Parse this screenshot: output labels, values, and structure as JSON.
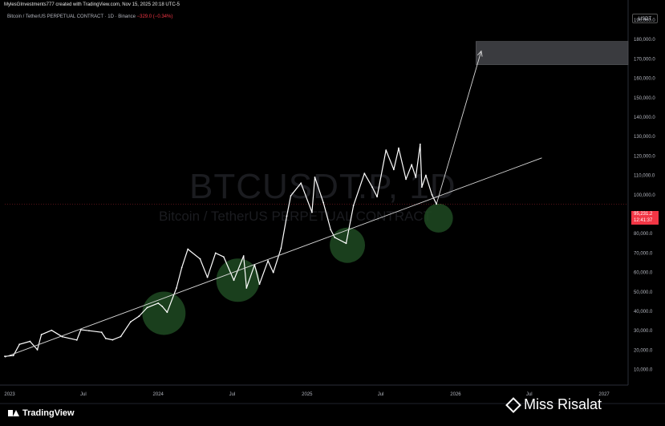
{
  "header": {
    "credit": "MylesGInvestments777 created with TradingView.com, Nov 15, 2025 20:18 UTC-5",
    "symbol_line": "Bitcoin / TetherUS PERPETUAL CONTRACT · 1D · Binance",
    "change": "−329.0 (−0.34%)"
  },
  "watermark": {
    "ticker": "BTCUSDT.P, 1D",
    "name": "Bitcoin / TetherUS PERPETUAL CONTRACT"
  },
  "currency_button": "USDT",
  "current_price_label": {
    "price": "95,231.2",
    "countdown": "12:41:37",
    "color": "#f23645"
  },
  "branding": {
    "tv_logo_text": "TradingView",
    "overlay_text": "Miss Risalat",
    "overlay_icon": "binance-diamond-icon"
  },
  "chart_data": {
    "type": "line",
    "title": "",
    "xlabel": "",
    "ylabel": "",
    "y_axis_ticks": [
      "190,000.0",
      "180,000.0",
      "170,000.0",
      "160,000.0",
      "150,000.0",
      "140,000.0",
      "130,000.0",
      "120,000.0",
      "110,000.0",
      "100,000.0",
      "90,000.0",
      "80,000.0",
      "70,000.0",
      "60,000.0",
      "50,000.0",
      "40,000.0",
      "30,000.0",
      "20,000.0",
      "10,000.0"
    ],
    "y_axis_values": [
      190000,
      180000,
      170000,
      160000,
      150000,
      140000,
      130000,
      120000,
      110000,
      100000,
      90000,
      80000,
      70000,
      60000,
      50000,
      40000,
      30000,
      20000,
      10000
    ],
    "x_axis_labels": [
      "2023",
      "Jul",
      "2024",
      "Jul",
      "2025",
      "Jul",
      "2026",
      "Jul",
      "2027"
    ],
    "x_axis_dates": [
      "2023-01-01",
      "2023-07-01",
      "2024-01-01",
      "2024-07-01",
      "2025-01-01",
      "2025-07-01",
      "2026-01-01",
      "2026-07-01",
      "2027-01-01"
    ],
    "ylim": [
      2000,
      197000
    ],
    "xlim": [
      "2022-12-20",
      "2027-03-01"
    ],
    "grid": false,
    "series": [
      {
        "x": [
          "2022-12-20",
          "2023-01-10",
          "2023-01-25",
          "2023-02-20",
          "2023-03-10",
          "2023-03-20",
          "2023-04-14",
          "2023-05-10",
          "2023-06-15",
          "2023-06-25",
          "2023-07-15",
          "2023-08-15",
          "2023-08-25",
          "2023-09-11",
          "2023-10-01",
          "2023-10-25",
          "2023-11-15",
          "2023-12-05",
          "2024-01-01",
          "2024-01-11",
          "2024-01-23",
          "2024-02-15",
          "2024-02-28",
          "2024-03-14",
          "2024-04-13",
          "2024-05-01",
          "2024-05-21",
          "2024-06-10",
          "2024-07-05",
          "2024-07-29",
          "2024-08-05",
          "2024-08-25",
          "2024-09-06",
          "2024-09-27",
          "2024-10-10",
          "2024-10-29",
          "2024-11-12",
          "2024-11-22",
          "2024-12-17",
          "2025-01-13",
          "2025-01-20",
          "2025-02-10",
          "2025-02-28",
          "2025-03-10",
          "2025-04-07",
          "2025-04-25",
          "2025-05-22",
          "2025-06-10",
          "2025-06-22",
          "2025-07-14",
          "2025-08-02",
          "2025-08-14",
          "2025-09-01",
          "2025-09-15",
          "2025-09-25",
          "2025-10-06",
          "2025-10-10",
          "2025-10-20",
          "2025-11-04",
          "2025-11-15"
        ],
        "values": [
          16800,
          17200,
          23000,
          24500,
          20200,
          28000,
          30200,
          26900,
          25200,
          30500,
          30000,
          29200,
          26000,
          25300,
          27000,
          34500,
          37500,
          41900,
          44200,
          42500,
          39500,
          52000,
          62500,
          72000,
          67000,
          57500,
          70000,
          68000,
          56000,
          68500,
          52000,
          64000,
          54000,
          66000,
          60000,
          72500,
          89000,
          99500,
          106000,
          91000,
          109000,
          96000,
          82000,
          78000,
          75000,
          94500,
          111000,
          104000,
          99000,
          123000,
          113000,
          124000,
          108000,
          115500,
          109000,
          126000,
          104000,
          110000,
          100000,
          95231
        ]
      }
    ],
    "annotations": {
      "trendline": {
        "from": [
          "2022-12-20",
          16400
        ],
        "to": [
          "2026-08-01",
          119000
        ]
      },
      "projection_arrow": {
        "from": [
          "2025-11-15",
          95231
        ],
        "to": [
          "2026-03-05",
          174000
        ]
      },
      "target_zone": {
        "x_from": "2026-02-20",
        "x_to": "2027-03-01",
        "y_from": 167000,
        "y_to": 179000
      },
      "touch_circles": [
        {
          "x": "2024-01-15",
          "y": 39000
        },
        {
          "x": "2024-07-15",
          "y": 56000
        },
        {
          "x": "2025-04-10",
          "y": 74000
        },
        {
          "x": "2025-11-20",
          "y": 88000
        }
      ]
    }
  }
}
